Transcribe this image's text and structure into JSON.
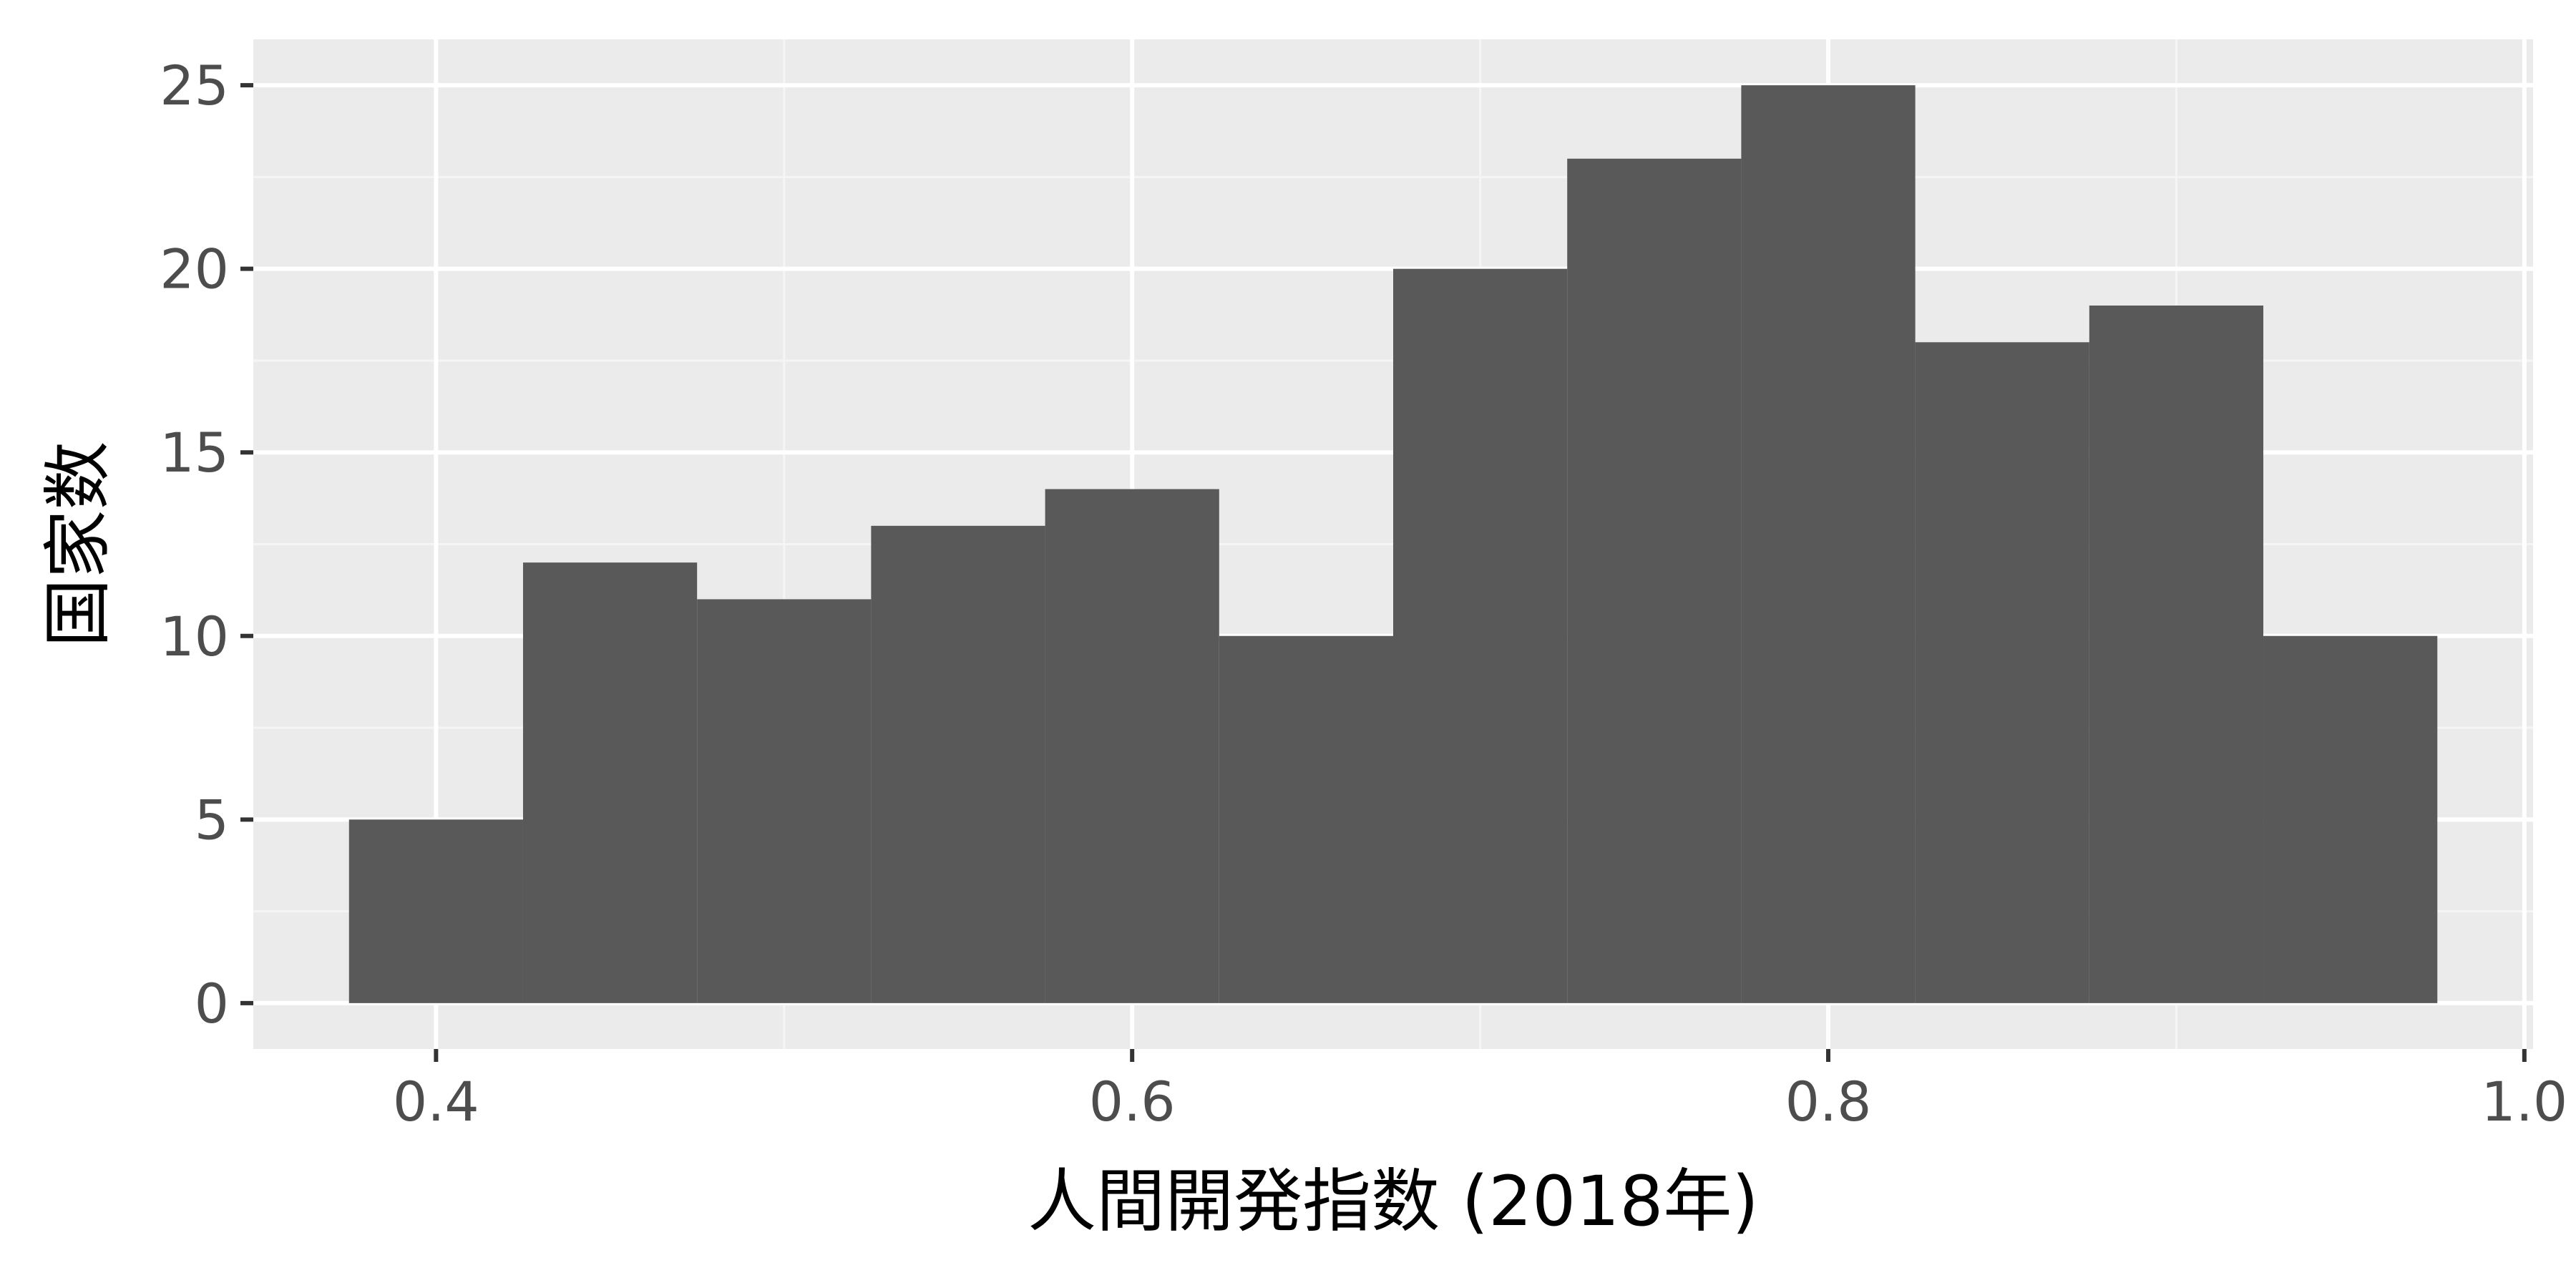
{
  "chart_data": {
    "type": "bar",
    "subtype": "histogram",
    "title": "",
    "xlabel": "人間開発指数 (2018年)",
    "ylabel": "国家数",
    "bin_width": 0.05,
    "bins": [
      {
        "x_start": 0.375,
        "x_end": 0.425,
        "count": 5
      },
      {
        "x_start": 0.425,
        "x_end": 0.475,
        "count": 12
      },
      {
        "x_start": 0.475,
        "x_end": 0.525,
        "count": 11
      },
      {
        "x_start": 0.525,
        "x_end": 0.575,
        "count": 13
      },
      {
        "x_start": 0.575,
        "x_end": 0.625,
        "count": 14
      },
      {
        "x_start": 0.625,
        "x_end": 0.675,
        "count": 10
      },
      {
        "x_start": 0.675,
        "x_end": 0.725,
        "count": 20
      },
      {
        "x_start": 0.725,
        "x_end": 0.775,
        "count": 23
      },
      {
        "x_start": 0.775,
        "x_end": 0.825,
        "count": 25
      },
      {
        "x_start": 0.825,
        "x_end": 0.875,
        "count": 18
      },
      {
        "x_start": 0.875,
        "x_end": 0.925,
        "count": 19
      },
      {
        "x_start": 0.925,
        "x_end": 0.975,
        "count": 10
      }
    ],
    "x_ticks": [
      0.4,
      0.6,
      0.8,
      1.0
    ],
    "x_tick_labels": [
      "0.4",
      "0.6",
      "0.8",
      "1.0"
    ],
    "y_ticks": [
      0,
      5,
      10,
      15,
      20,
      25
    ],
    "y_tick_labels": [
      "0",
      "5",
      "10",
      "15",
      "20",
      "25"
    ],
    "xlim": [
      0.3475,
      1.0025
    ],
    "ylim": [
      -1.25,
      26.25
    ],
    "grid": true,
    "legend": "none",
    "colors": {
      "bar_fill": "#595959",
      "panel_background": "#ebebeb",
      "grid_major": "#ffffff",
      "grid_minor": "#f5f5f5",
      "tick_label": "#4d4d4d",
      "tick_mark": "#333333",
      "axis_title": "#000000"
    }
  }
}
